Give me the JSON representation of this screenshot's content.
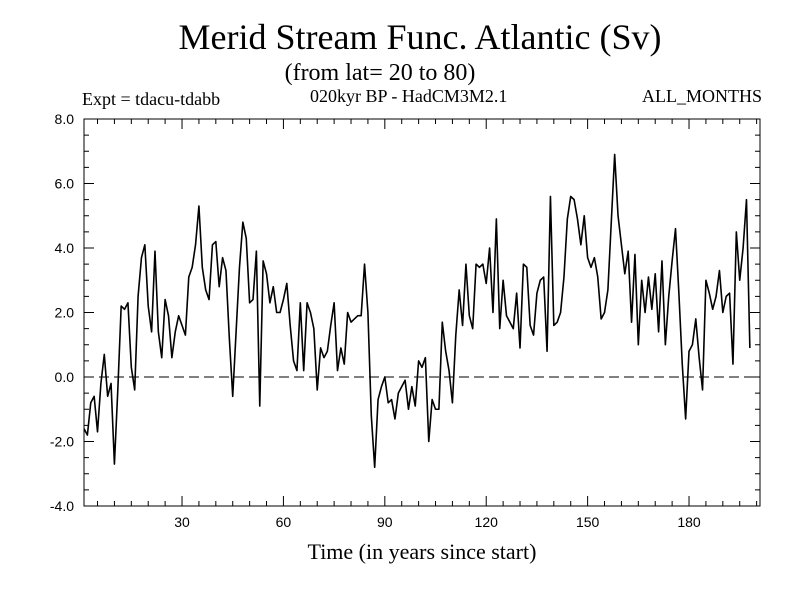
{
  "header": {
    "title": "Merid Stream Func. Atlantic (Sv)",
    "subtitle": "(from lat= 20 to 80)",
    "experiment": "Expt = tdacu-tdabb",
    "model": "020kyr BP - HadCM3M2.1",
    "period": "ALL_MONTHS"
  },
  "chart_data": {
    "type": "line",
    "title": "Merid Stream Func. Atlantic (Sv)",
    "subtitle": "(from lat= 20 to 80)",
    "xlabel": "Time (in years since start)",
    "ylabel": "",
    "xlim": [
      1,
      201
    ],
    "ylim": [
      -4.0,
      8.0
    ],
    "xticks": [
      30,
      60,
      90,
      120,
      150,
      180
    ],
    "yticks": [
      -4.0,
      -2.0,
      0.0,
      2.0,
      4.0,
      6.0,
      8.0
    ],
    "ytick_labels": [
      "-4.0",
      "-2.0",
      "0.0",
      "2.0",
      "4.0",
      "6.0",
      "8.0"
    ],
    "reference_line": {
      "y": 0.0,
      "style": "dashed"
    },
    "line_color": "#000000",
    "series": [
      {
        "name": "Merid Stream Func. Atlantic",
        "x_start": 1,
        "x_step": 1,
        "values": [
          -1.6,
          -1.8,
          -0.8,
          -0.6,
          -1.7,
          -0.2,
          0.7,
          -0.6,
          -0.2,
          -2.7,
          -0.4,
          2.2,
          2.1,
          2.3,
          0.3,
          -0.4,
          2.5,
          3.7,
          4.1,
          2.2,
          1.4,
          3.9,
          1.4,
          0.6,
          2.4,
          1.9,
          0.6,
          1.4,
          1.9,
          1.6,
          1.3,
          3.1,
          3.4,
          4.1,
          5.3,
          3.4,
          2.7,
          2.4,
          4.1,
          4.2,
          2.8,
          3.7,
          3.3,
          1.2,
          -0.6,
          1.4,
          3.4,
          4.8,
          4.3,
          2.3,
          2.4,
          3.9,
          -0.9,
          3.6,
          3.2,
          2.3,
          2.8,
          2.0,
          2.0,
          2.4,
          2.9,
          1.6,
          0.5,
          0.2,
          2.3,
          0.2,
          2.3,
          2.0,
          1.5,
          -0.4,
          0.9,
          0.6,
          0.8,
          1.6,
          2.3,
          0.2,
          0.9,
          0.4,
          2.0,
          1.7,
          1.8,
          1.9,
          1.9,
          3.5,
          2.0,
          -1.2,
          -2.8,
          -0.7,
          -0.3,
          0.0,
          -0.8,
          -0.7,
          -1.3,
          -0.5,
          -0.3,
          -0.1,
          -1.0,
          -0.3,
          -0.9,
          0.5,
          0.3,
          0.6,
          -2.0,
          -0.7,
          -1.0,
          -1.0,
          1.7,
          0.8,
          0.2,
          -0.8,
          1.3,
          2.7,
          1.6,
          3.5,
          1.9,
          1.5,
          3.5,
          3.4,
          3.5,
          2.9,
          4.0,
          2.0,
          4.9,
          1.5,
          3.0,
          1.9,
          1.7,
          1.5,
          2.6,
          0.9,
          3.5,
          3.4,
          1.6,
          1.3,
          2.6,
          3.0,
          3.1,
          0.8,
          5.6,
          1.6,
          1.7,
          2.0,
          3.1,
          4.9,
          5.6,
          5.5,
          4.9,
          4.1,
          5.0,
          3.7,
          3.4,
          3.7,
          3.1,
          1.8,
          2.0,
          2.7,
          4.8,
          6.9,
          5.0,
          4.1,
          3.2,
          3.9,
          1.7,
          3.8,
          1.0,
          3.0,
          2.0,
          3.1,
          2.1,
          3.2,
          1.4,
          3.6,
          1.0,
          2.5,
          3.6,
          4.6,
          2.6,
          0.4,
          -1.3,
          0.8,
          1.0,
          1.8,
          0.6,
          -0.4,
          3.0,
          2.6,
          2.1,
          2.5,
          3.3,
          2.0,
          2.5,
          2.6,
          0.4,
          4.5,
          3.0,
          4.0,
          5.5,
          0.9
        ]
      }
    ]
  }
}
